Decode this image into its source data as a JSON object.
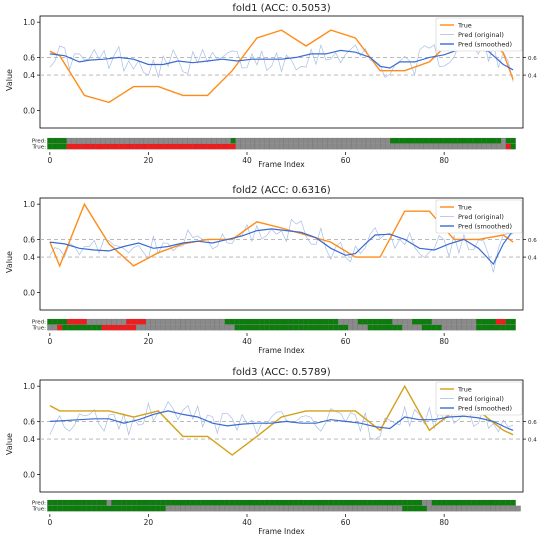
{
  "chart_data": [
    {
      "type": "line",
      "title": "fold1 (ACC: 0.5053)",
      "xlabel": "Frame Index",
      "ylabel": "Value",
      "xlim": [
        -2,
        96
      ],
      "ylim": [
        -0.2,
        1.07
      ],
      "xticks": [
        0,
        20,
        40,
        60,
        80
      ],
      "yticks": [
        0.0,
        0.4,
        0.6,
        1.0
      ],
      "right_ticks": [
        0.4,
        0.6
      ],
      "threshold_lines": [
        0.4,
        0.6
      ],
      "grid": false,
      "legend_position": "top-right",
      "legend": [
        "True",
        "Pred (original)",
        "Pred (smoothed)"
      ],
      "true_color": "#ff8c1a",
      "true_points": [
        [
          0,
          0.67
        ],
        [
          2,
          0.62
        ],
        [
          7,
          0.17
        ],
        [
          12,
          0.09
        ],
        [
          17,
          0.27
        ],
        [
          22,
          0.27
        ],
        [
          27,
          0.17
        ],
        [
          32,
          0.17
        ],
        [
          37,
          0.45
        ],
        [
          42,
          0.82
        ],
        [
          47,
          0.91
        ],
        [
          52,
          0.73
        ],
        [
          57,
          0.91
        ],
        [
          62,
          0.82
        ],
        [
          67,
          0.45
        ],
        [
          72,
          0.45
        ],
        [
          77,
          0.55
        ],
        [
          82,
          0.82
        ],
        [
          87,
          0.91
        ],
        [
          92,
          0.65
        ],
        [
          94,
          0.35
        ]
      ],
      "smoothed": [
        [
          0,
          0.64
        ],
        [
          3,
          0.62
        ],
        [
          6,
          0.55
        ],
        [
          8,
          0.57
        ],
        [
          11,
          0.58
        ],
        [
          14,
          0.6
        ],
        [
          17,
          0.58
        ],
        [
          20,
          0.52
        ],
        [
          23,
          0.52
        ],
        [
          26,
          0.56
        ],
        [
          29,
          0.54
        ],
        [
          32,
          0.56
        ],
        [
          35,
          0.58
        ],
        [
          38,
          0.56
        ],
        [
          41,
          0.58
        ],
        [
          44,
          0.58
        ],
        [
          47,
          0.58
        ],
        [
          50,
          0.6
        ],
        [
          53,
          0.64
        ],
        [
          56,
          0.64
        ],
        [
          59,
          0.68
        ],
        [
          62,
          0.66
        ],
        [
          65,
          0.6
        ],
        [
          67,
          0.5
        ],
        [
          69,
          0.48
        ],
        [
          71,
          0.55
        ],
        [
          74,
          0.55
        ],
        [
          77,
          0.6
        ],
        [
          80,
          0.63
        ],
        [
          83,
          0.69
        ],
        [
          86,
          0.7
        ],
        [
          89,
          0.67
        ],
        [
          92,
          0.52
        ],
        [
          94,
          0.46
        ]
      ],
      "bar_labels": [
        "Pred:",
        "True:"
      ],
      "pred_strip": "GGGGXXXXXXXXXXXXXXXXXXXXXXXXXXXXXXXXXXGXXXXXXXXXXXXXXXXXXXXXXXXXXXXXXXXGGGGGGGGGGGGGGGGGGGGGGGXGG",
      "true_strip": "GGGGRRRRRRRRRRRRRRRRRRRRRRRRRRRRRRRRRRRXXXXXXXXXXXXXXXXXXXXXXXXXXXXXXXXXXXXXXXXXXXXXXXXXXXXXXXXRG"
    },
    {
      "type": "line",
      "title": "fold2 (ACC: 0.6316)",
      "xlabel": "Frame Index",
      "ylabel": "Value",
      "xlim": [
        -2,
        96
      ],
      "ylim": [
        -0.2,
        1.07
      ],
      "xticks": [
        0,
        20,
        40,
        60,
        80
      ],
      "yticks": [
        0.0,
        0.4,
        0.6,
        1.0
      ],
      "right_ticks": [
        0.4,
        0.6
      ],
      "threshold_lines": [
        0.4,
        0.6
      ],
      "grid": false,
      "legend_position": "top-right",
      "legend": [
        "True",
        "Pred (original)",
        "Pred (smoothed)"
      ],
      "true_color": "#ff8c1a",
      "true_points": [
        [
          0,
          0.57
        ],
        [
          2,
          0.3
        ],
        [
          7,
          1.0
        ],
        [
          12,
          0.55
        ],
        [
          17,
          0.3
        ],
        [
          22,
          0.45
        ],
        [
          27,
          0.55
        ],
        [
          32,
          0.6
        ],
        [
          37,
          0.6
        ],
        [
          42,
          0.8
        ],
        [
          47,
          0.73
        ],
        [
          52,
          0.65
        ],
        [
          57,
          0.57
        ],
        [
          62,
          0.4
        ],
        [
          67,
          0.4
        ],
        [
          72,
          0.92
        ],
        [
          77,
          0.92
        ],
        [
          82,
          0.6
        ],
        [
          87,
          0.6
        ],
        [
          92,
          0.65
        ],
        [
          94,
          0.57
        ]
      ],
      "smoothed": [
        [
          0,
          0.57
        ],
        [
          3,
          0.55
        ],
        [
          6,
          0.5
        ],
        [
          9,
          0.48
        ],
        [
          12,
          0.47
        ],
        [
          15,
          0.52
        ],
        [
          18,
          0.56
        ],
        [
          21,
          0.5
        ],
        [
          24,
          0.52
        ],
        [
          27,
          0.56
        ],
        [
          30,
          0.58
        ],
        [
          33,
          0.56
        ],
        [
          36,
          0.6
        ],
        [
          39,
          0.64
        ],
        [
          42,
          0.7
        ],
        [
          45,
          0.72
        ],
        [
          48,
          0.7
        ],
        [
          51,
          0.68
        ],
        [
          54,
          0.62
        ],
        [
          57,
          0.5
        ],
        [
          60,
          0.42
        ],
        [
          62,
          0.44
        ],
        [
          64,
          0.55
        ],
        [
          66,
          0.65
        ],
        [
          69,
          0.66
        ],
        [
          72,
          0.6
        ],
        [
          75,
          0.5
        ],
        [
          78,
          0.48
        ],
        [
          81,
          0.55
        ],
        [
          84,
          0.6
        ],
        [
          87,
          0.5
        ],
        [
          90,
          0.32
        ],
        [
          92,
          0.55
        ],
        [
          94,
          0.7
        ]
      ],
      "bar_labels": [
        "Pred:",
        "True:"
      ],
      "pred_strip": "GGGGRRRRXXXXXXXXRRRRXXXXXXXXXXXXXXXXGGGGGGGGGGGGGGGGGGGGGGGXXXXGGGGGGGXXXXGGGGXXXXXXXXXGGGGRRGG",
      "true_strip": "XXRGGGGGGGGRRRRRRRXXXXXXXXXXXXXXXXXXXXGGGGGGGGGGGGGGGGGGGGGGGXXXXGGGGGGGXXXXGGGGXXXXXXXGGGGGGGG"
    },
    {
      "type": "line",
      "title": "fold3 (ACC: 0.5789)",
      "xlabel": "Frame Index",
      "ylabel": "Value",
      "xlim": [
        -2,
        96
      ],
      "ylim": [
        -0.2,
        1.07
      ],
      "xticks": [
        0,
        20,
        40,
        60,
        80
      ],
      "yticks": [
        0.0,
        0.4,
        0.6,
        1.0
      ],
      "right_ticks": [
        0.4,
        0.6
      ],
      "threshold_lines": [
        0.4,
        0.6
      ],
      "grid": false,
      "legend_position": "top-right",
      "legend": [
        "True",
        "Pred (original)",
        "Pred (smoothed)"
      ],
      "true_color": "#d4a017",
      "true_points": [
        [
          0,
          0.78
        ],
        [
          2,
          0.72
        ],
        [
          7,
          0.72
        ],
        [
          12,
          0.72
        ],
        [
          17,
          0.65
        ],
        [
          22,
          0.72
        ],
        [
          27,
          0.43
        ],
        [
          32,
          0.43
        ],
        [
          37,
          0.22
        ],
        [
          42,
          0.43
        ],
        [
          47,
          0.65
        ],
        [
          52,
          0.72
        ],
        [
          57,
          0.72
        ],
        [
          62,
          0.72
        ],
        [
          67,
          0.5
        ],
        [
          72,
          1.0
        ],
        [
          77,
          0.5
        ],
        [
          82,
          0.72
        ],
        [
          87,
          0.72
        ],
        [
          92,
          0.5
        ],
        [
          94,
          0.45
        ]
      ],
      "smoothed": [
        [
          0,
          0.6
        ],
        [
          3,
          0.61
        ],
        [
          6,
          0.62
        ],
        [
          9,
          0.63
        ],
        [
          12,
          0.63
        ],
        [
          15,
          0.58
        ],
        [
          18,
          0.62
        ],
        [
          21,
          0.68
        ],
        [
          24,
          0.72
        ],
        [
          27,
          0.68
        ],
        [
          30,
          0.65
        ],
        [
          33,
          0.58
        ],
        [
          36,
          0.55
        ],
        [
          39,
          0.57
        ],
        [
          42,
          0.58
        ],
        [
          45,
          0.58
        ],
        [
          48,
          0.6
        ],
        [
          51,
          0.58
        ],
        [
          54,
          0.58
        ],
        [
          57,
          0.62
        ],
        [
          60,
          0.6
        ],
        [
          63,
          0.58
        ],
        [
          66,
          0.54
        ],
        [
          69,
          0.52
        ],
        [
          72,
          0.65
        ],
        [
          75,
          0.62
        ],
        [
          78,
          0.62
        ],
        [
          81,
          0.65
        ],
        [
          84,
          0.66
        ],
        [
          87,
          0.64
        ],
        [
          90,
          0.6
        ],
        [
          93,
          0.52
        ],
        [
          94,
          0.5
        ]
      ],
      "bar_labels": [
        "Pred:",
        "True:"
      ],
      "pred_strip": "GGGGGGGGGGGGXGGGGGGGGGGGGGGGGGGGGGGGGGGGGGGGGGGGGGGGGGGGGGGGGGGGGGGGGGGGGGGGXXGGGGGGGGGGGGGGGGG",
      "true_strip": "GGGGGGGGGGGGGGGGGGGGGGGGXXXXXXXXXXXXXXXXXXXXXXXXXXXXXXXXXXXXXXXXXXXXXXXXGGGGGXXXXXXXXXXXXXXXXXXX"
    }
  ],
  "colors": {
    "pred_smoothed": "#3a6bd0",
    "pred_original": "#a9bfe6",
    "strip_green": "#0a7d0a",
    "strip_gray": "#8a8a8a",
    "strip_red": "#ee1c1c",
    "threshold": "#b0b0b0"
  }
}
